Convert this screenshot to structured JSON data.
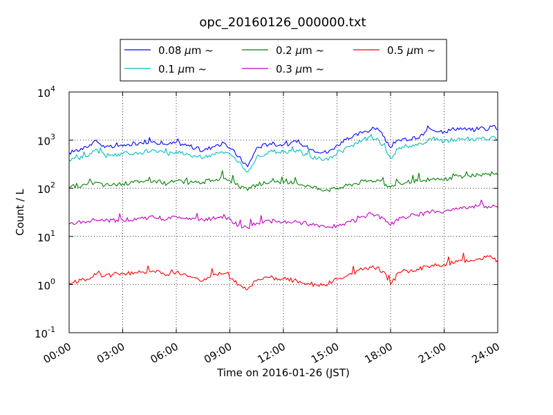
{
  "chart_data": {
    "type": "line",
    "title": "opc_20160126_000000.txt",
    "xlabel": "Time on 2016-01-26 (JST)",
    "ylabel": "Count / L",
    "yscale": "log",
    "xlim": [
      "00:00",
      "24:00"
    ],
    "ylim": [
      0.1,
      10000
    ],
    "grid": true,
    "legend_placement": "top-center",
    "x_ticks": [
      "00:00",
      "03:00",
      "06:00",
      "09:00",
      "12:00",
      "15:00",
      "18:00",
      "21:00",
      "24:00"
    ],
    "y_ticks": [
      {
        "value": 0.1,
        "base": "10",
        "exp": "-1"
      },
      {
        "value": 1,
        "base": "10",
        "exp": "0"
      },
      {
        "value": 10,
        "base": "10",
        "exp": "1"
      },
      {
        "value": 100,
        "base": "10",
        "exp": "2"
      },
      {
        "value": 1000,
        "base": "10",
        "exp": "3"
      },
      {
        "value": 10000,
        "base": "10",
        "exp": "4"
      }
    ],
    "x": [
      "00:00",
      "01:00",
      "01:30",
      "02:00",
      "03:00",
      "04:00",
      "04:45",
      "05:30",
      "06:00",
      "06:45",
      "07:30",
      "08:15",
      "08:45",
      "09:30",
      "10:00",
      "10:30",
      "11:15",
      "12:00",
      "12:45",
      "13:30",
      "14:30",
      "15:00",
      "15:45",
      "16:30",
      "17:15",
      "17:45",
      "18:00",
      "18:30",
      "19:30",
      "20:15",
      "21:00",
      "21:45",
      "22:30",
      "23:00",
      "23:30",
      "23:45",
      "24:00"
    ],
    "series": [
      {
        "name": "0.08",
        "unit": "µm",
        "suffix": "~",
        "color": "#0000ff",
        "values": [
          550,
          700,
          1000,
          700,
          750,
          900,
          950,
          800,
          900,
          750,
          600,
          800,
          850,
          450,
          280,
          700,
          850,
          800,
          900,
          650,
          550,
          800,
          1100,
          1500,
          1800,
          900,
          700,
          1000,
          1100,
          1700,
          1500,
          1800,
          1600,
          1800,
          1700,
          2000,
          1600
        ]
      },
      {
        "name": "0.1",
        "unit": "µm",
        "suffix": "~",
        "color": "#00bfbf",
        "values": [
          380,
          450,
          650,
          480,
          520,
          550,
          620,
          520,
          580,
          500,
          420,
          560,
          560,
          350,
          220,
          450,
          580,
          560,
          620,
          450,
          380,
          520,
          750,
          1050,
          1100,
          600,
          420,
          700,
          780,
          1050,
          950,
          1050,
          1050,
          1100,
          1000,
          1200,
          1000
        ]
      },
      {
        "name": "0.2",
        "unit": "µm",
        "suffix": "~",
        "color": "#008000",
        "values": [
          105,
          120,
          135,
          115,
          125,
          140,
          145,
          125,
          145,
          130,
          135,
          155,
          160,
          110,
          90,
          120,
          135,
          130,
          130,
          110,
          92,
          100,
          120,
          140,
          150,
          120,
          105,
          130,
          140,
          155,
          150,
          180,
          170,
          190,
          200,
          200,
          190
        ]
      },
      {
        "name": "0.3",
        "unit": "µm",
        "suffix": "~",
        "color": "#bf00bf",
        "values": [
          18,
          20,
          22,
          21,
          22,
          24,
          25,
          23,
          26,
          24,
          22,
          24,
          25,
          17,
          15,
          19,
          21,
          20,
          20,
          18,
          16,
          17,
          20,
          26,
          28,
          20,
          17,
          25,
          28,
          32,
          33,
          37,
          40,
          45,
          42,
          45,
          40
        ]
      },
      {
        "name": "0.5",
        "unit": "µm",
        "suffix": "~",
        "color": "#ff0000",
        "values": [
          1.1,
          1.3,
          1.6,
          1.5,
          1.7,
          1.8,
          1.9,
          1.6,
          1.8,
          1.5,
          1.2,
          1.6,
          1.7,
          1.0,
          0.8,
          1.2,
          1.4,
          1.3,
          1.2,
          1.0,
          1.0,
          1.3,
          1.7,
          2.1,
          2.3,
          1.6,
          1.0,
          1.8,
          2.1,
          2.4,
          2.6,
          3.0,
          3.2,
          3.5,
          3.8,
          3.4,
          3.2
        ]
      }
    ]
  }
}
